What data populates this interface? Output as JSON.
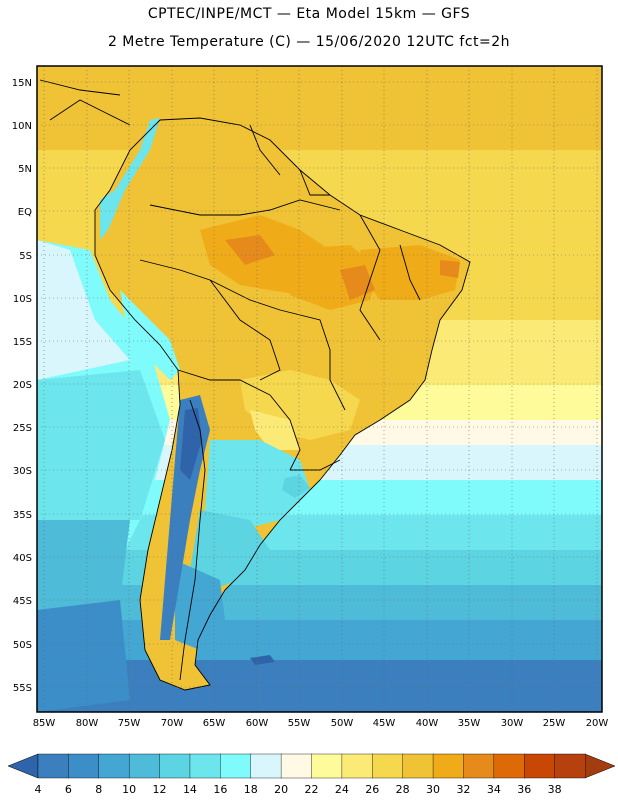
{
  "header": {
    "title_line1": "CPTEC/INPE/MCT  —  Eta Model 15km  —  GFS",
    "title_line2": "2 Metre Temperature (C)  —  15/06/2020 12UTC fct=2h"
  },
  "map": {
    "lat_labels": [
      "15N",
      "10N",
      "5N",
      "EQ",
      "5S",
      "10S",
      "15S",
      "20S",
      "25S",
      "30S",
      "35S",
      "40S",
      "45S",
      "50S",
      "55S"
    ],
    "lon_labels": [
      "85W",
      "80W",
      "75W",
      "70W",
      "65W",
      "60W",
      "55W",
      "50W",
      "45W",
      "40W",
      "35W",
      "30W",
      "25W",
      "20W"
    ]
  },
  "colorbar": {
    "labels": [
      "4",
      "6",
      "8",
      "10",
      "12",
      "14",
      "16",
      "18",
      "20",
      "22",
      "24",
      "26",
      "28",
      "30",
      "32",
      "34",
      "36",
      "38"
    ],
    "colors": [
      "#2f64aa",
      "#3c7fbf",
      "#3c8ec8",
      "#44a6d2",
      "#4ebcd9",
      "#5cd4e2",
      "#6ce6ec",
      "#80fbfb",
      "#d8f6fb",
      "#fff9e6",
      "#fefc9a",
      "#fbeb76",
      "#f6d84f",
      "#f0c236",
      "#efab18",
      "#e68a1b",
      "#de6a07",
      "#c84705",
      "#b7410e",
      "#a33d10"
    ]
  },
  "icons": {
    "left_arrow": "colorbar-left-arrow-icon",
    "right_arrow": "colorbar-right-arrow-icon"
  }
}
